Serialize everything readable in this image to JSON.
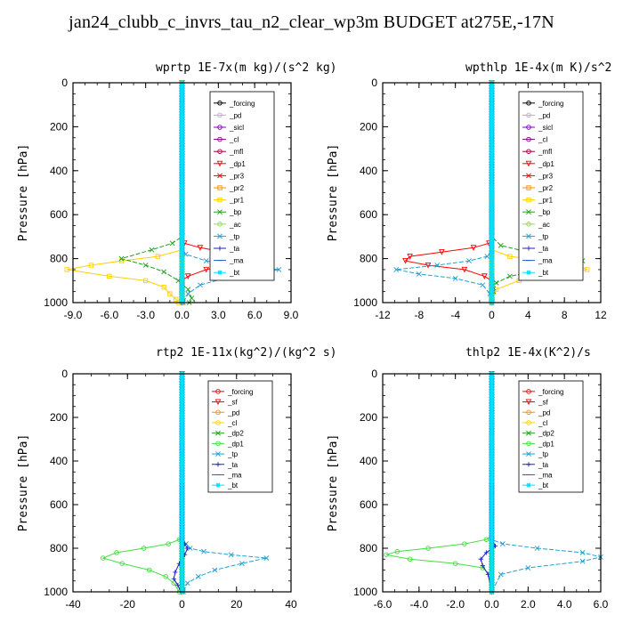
{
  "page_title": "jan24_clubb_c_invrs_tau_n2_clear_wp3m  BUDGET at275E,-17N",
  "chart_data": [
    {
      "type": "line",
      "title": "wprtp  1E-7x(m kg)/(s^2 kg)",
      "ylabel": "Pressure [hPa]",
      "xlim": [
        -9,
        9
      ],
      "ylim": [
        1000,
        0
      ],
      "xticks": [
        -9.0,
        -6.0,
        -3.0,
        0.0,
        3.0,
        6.0,
        9.0
      ],
      "xtick_labels": [
        "-9.0",
        "-6.0",
        "-3.0",
        "0.0",
        "3.0",
        "6.0",
        "9.0"
      ],
      "yticks": [
        0,
        200,
        400,
        600,
        800,
        1000
      ],
      "legend_position": "top-right",
      "series": [
        {
          "name": "_forcing",
          "color": "#000000",
          "marker": "o",
          "x": [
            0,
            0,
            0,
            0,
            0,
            0
          ],
          "y": [
            0,
            200,
            400,
            600,
            800,
            1000
          ]
        },
        {
          "name": "_pd",
          "color": "#c8a0e0",
          "marker": "o",
          "x": [
            0,
            0,
            0
          ],
          "y": [
            0,
            500,
            1000
          ]
        },
        {
          "name": "_sicl",
          "color": "#8000c0",
          "marker": "o",
          "x": [
            0,
            0,
            0
          ],
          "y": [
            0,
            500,
            1000
          ]
        },
        {
          "name": "_cl",
          "color": "#800080",
          "marker": "o",
          "x": [
            0,
            0,
            0
          ],
          "y": [
            0,
            500,
            1000
          ]
        },
        {
          "name": "_mfl",
          "color": "#a00040",
          "marker": "o",
          "x": [
            0,
            0,
            0
          ],
          "y": [
            0,
            500,
            1000
          ]
        },
        {
          "name": "_dp1",
          "color": "#ff0000",
          "marker": "v",
          "x": [
            0,
            0,
            0.2,
            1.5,
            3.5,
            5.0,
            5.2,
            4.0,
            2.0,
            0.5,
            0,
            0
          ],
          "y": [
            0,
            700,
            730,
            750,
            770,
            790,
            810,
            830,
            850,
            880,
            900,
            1000
          ]
        },
        {
          "name": "_pr3",
          "color": "#ff0000",
          "marker": "x",
          "x": [
            0,
            0,
            0
          ],
          "y": [
            0,
            500,
            1000
          ]
        },
        {
          "name": "_pr2",
          "color": "#ff9000",
          "marker": "s",
          "x": [
            0,
            0,
            0
          ],
          "y": [
            0,
            500,
            1000
          ]
        },
        {
          "name": "_pr1",
          "color": "#ffd000",
          "marker": "s",
          "x": [
            0,
            0,
            0,
            -2.0,
            -5.0,
            -7.5,
            -9.5,
            -6.0,
            -3.0,
            -1.5,
            -1.0,
            -0.5,
            -0.3
          ],
          "y": [
            0,
            700,
            760,
            790,
            810,
            830,
            850,
            880,
            900,
            930,
            960,
            985,
            1000
          ]
        },
        {
          "name": "_bp",
          "color": "#20a020",
          "marker": "x",
          "x": [
            0,
            0,
            -0.8,
            -2.5,
            -5.0,
            -3.0,
            -1.5,
            -0.3,
            0.5,
            0.8,
            0.6
          ],
          "y": [
            0,
            700,
            730,
            760,
            800,
            830,
            860,
            900,
            940,
            980,
            1000
          ]
        },
        {
          "name": "_ac",
          "color": "#90e040",
          "marker": "o",
          "x": [
            0,
            0,
            0
          ],
          "y": [
            0,
            500,
            1000
          ]
        },
        {
          "name": "_tp",
          "color": "#20a0d0",
          "marker": "x",
          "x": [
            0,
            0,
            0.3,
            2.0,
            5.5,
            8.0,
            6.0,
            3.5,
            1.5,
            0.5,
            0.1
          ],
          "y": [
            0,
            750,
            780,
            810,
            830,
            850,
            870,
            890,
            920,
            960,
            1000
          ]
        },
        {
          "name": "_ta",
          "color": "#2020c0",
          "marker": "+",
          "x": [
            0,
            0,
            0
          ],
          "y": [
            0,
            500,
            1000
          ]
        },
        {
          "name": "_ma",
          "color": "#2060c0",
          "marker": "-",
          "x": [
            0,
            0,
            0
          ],
          "y": [
            0,
            500,
            1000
          ]
        },
        {
          "name": "_bt",
          "color": "#00e0ff",
          "marker": "*",
          "x": [
            0,
            0,
            0
          ],
          "y": [
            0,
            500,
            1000
          ]
        }
      ]
    },
    {
      "type": "line",
      "title": "wpthlp  1E-4x(m K)/s^2",
      "ylabel": "Pressure [hPa]",
      "xlim": [
        -12,
        12
      ],
      "ylim": [
        1000,
        0
      ],
      "xticks": [
        -12,
        -8,
        -4,
        0,
        4,
        8,
        12
      ],
      "xtick_labels": [
        "-12",
        "-8",
        "-4",
        "0",
        "4",
        "8",
        "12"
      ],
      "yticks": [
        0,
        200,
        400,
        600,
        800,
        1000
      ],
      "legend_position": "top-right",
      "series": [
        {
          "name": "_forcing",
          "color": "#000000",
          "marker": "o",
          "x": [
            0,
            0,
            0
          ],
          "y": [
            0,
            500,
            1000
          ]
        },
        {
          "name": "_pd",
          "color": "#c8a0e0",
          "marker": "o",
          "x": [
            0,
            0,
            0
          ],
          "y": [
            0,
            500,
            1000
          ]
        },
        {
          "name": "_sicl",
          "color": "#8000c0",
          "marker": "o",
          "x": [
            0,
            0,
            0
          ],
          "y": [
            0,
            500,
            1000
          ]
        },
        {
          "name": "_cl",
          "color": "#800080",
          "marker": "o",
          "x": [
            0,
            0,
            0
          ],
          "y": [
            0,
            500,
            1000
          ]
        },
        {
          "name": "_mfl",
          "color": "#a00040",
          "marker": "o",
          "x": [
            0,
            0,
            0
          ],
          "y": [
            0,
            500,
            1000
          ]
        },
        {
          "name": "_dp1",
          "color": "#ff0000",
          "marker": "v",
          "x": [
            0,
            0,
            -0.3,
            -2.0,
            -5.5,
            -9.0,
            -9.5,
            -7.0,
            -3.0,
            -0.8,
            0,
            0
          ],
          "y": [
            0,
            700,
            730,
            750,
            770,
            790,
            810,
            830,
            850,
            880,
            900,
            1000
          ]
        },
        {
          "name": "_pr3",
          "color": "#ff0000",
          "marker": "x",
          "x": [
            0,
            0,
            0
          ],
          "y": [
            0,
            500,
            1000
          ]
        },
        {
          "name": "_pr2",
          "color": "#ff9000",
          "marker": "s",
          "x": [
            0,
            0,
            0
          ],
          "y": [
            0,
            500,
            1000
          ]
        },
        {
          "name": "_pr1",
          "color": "#ffd000",
          "marker": "s",
          "x": [
            0,
            0,
            0,
            2.0,
            6.0,
            9.5,
            10.5,
            7.0,
            3.0,
            0.5,
            0
          ],
          "y": [
            0,
            700,
            760,
            790,
            810,
            830,
            850,
            880,
            900,
            940,
            1000
          ]
        },
        {
          "name": "_bp",
          "color": "#20a020",
          "marker": "x",
          "x": [
            0,
            0,
            1.0,
            4.0,
            7.5,
            10.0,
            7.0,
            2.0,
            0.5,
            0.2,
            0
          ],
          "y": [
            0,
            700,
            740,
            770,
            790,
            810,
            840,
            880,
            910,
            950,
            1000
          ]
        },
        {
          "name": "_ac",
          "color": "#90e040",
          "marker": "o",
          "x": [
            0,
            0,
            0
          ],
          "y": [
            0,
            500,
            1000
          ]
        },
        {
          "name": "_tp",
          "color": "#20a0d0",
          "marker": "x",
          "x": [
            0,
            0,
            -0.5,
            -2.5,
            -6.0,
            -10.5,
            -8.0,
            -4.0,
            -1.0,
            -0.2,
            0
          ],
          "y": [
            0,
            760,
            790,
            810,
            830,
            850,
            870,
            890,
            920,
            960,
            1000
          ]
        },
        {
          "name": "_ta",
          "color": "#2020c0",
          "marker": "+",
          "x": [
            0,
            0,
            0
          ],
          "y": [
            0,
            500,
            1000
          ]
        },
        {
          "name": "_ma",
          "color": "#2060c0",
          "marker": "-",
          "x": [
            0,
            0,
            0
          ],
          "y": [
            0,
            500,
            1000
          ]
        },
        {
          "name": "_bt",
          "color": "#00e0ff",
          "marker": "*",
          "x": [
            0,
            0,
            0
          ],
          "y": [
            0,
            500,
            1000
          ]
        }
      ]
    },
    {
      "type": "line",
      "title": "rtp2  1E-11x(kg^2)/(kg^2 s)",
      "ylabel": "Pressure [hPa]",
      "xlim": [
        -40,
        40
      ],
      "ylim": [
        1000,
        0
      ],
      "xticks": [
        -40,
        -20,
        0,
        20,
        40
      ],
      "xtick_labels": [
        "-40",
        "-20",
        "0",
        "20",
        "40"
      ],
      "yticks": [
        0,
        200,
        400,
        600,
        800,
        1000
      ],
      "legend_position": "top-right",
      "series": [
        {
          "name": "_forcing",
          "color": "#ff0000",
          "marker": "o",
          "x": [
            0,
            0,
            0,
            0,
            0,
            0
          ],
          "y": [
            0,
            200,
            400,
            600,
            800,
            1000
          ]
        },
        {
          "name": "_sf",
          "color": "#ff0000",
          "marker": "v",
          "x": [
            0,
            0,
            0
          ],
          "y": [
            0,
            500,
            1000
          ]
        },
        {
          "name": "_pd",
          "color": "#ff9000",
          "marker": "o",
          "x": [
            0,
            0,
            0
          ],
          "y": [
            0,
            500,
            1000
          ]
        },
        {
          "name": "_cl",
          "color": "#ffd000",
          "marker": "o",
          "x": [
            0,
            0,
            0
          ],
          "y": [
            0,
            500,
            1000
          ]
        },
        {
          "name": "_dp2",
          "color": "#20a020",
          "marker": "x",
          "x": [
            0,
            0,
            0
          ],
          "y": [
            0,
            500,
            1000
          ]
        },
        {
          "name": "_dp1",
          "color": "#40e040",
          "marker": "o",
          "x": [
            0,
            0,
            -1.0,
            -5.0,
            -14.0,
            -24.0,
            -29.0,
            -22.0,
            -12.0,
            -6.0,
            -3.0,
            -1.0
          ],
          "y": [
            0,
            740,
            760,
            780,
            800,
            820,
            845,
            870,
            900,
            930,
            960,
            1000
          ]
        },
        {
          "name": "_tp",
          "color": "#20a0d0",
          "marker": "x",
          "x": [
            0,
            0,
            1.5,
            3.0,
            8.0,
            18.0,
            31.0,
            22.0,
            12.0,
            6.0,
            2.0,
            0.5
          ],
          "y": [
            0,
            760,
            780,
            800,
            815,
            830,
            845,
            870,
            900,
            930,
            960,
            1000
          ]
        },
        {
          "name": "_ta",
          "color": "#2020c0",
          "marker": "+",
          "x": [
            0,
            0,
            1.0,
            2.0,
            1.0,
            -1.0,
            -2.5,
            -3.0,
            -1.5,
            -0.5
          ],
          "y": [
            0,
            760,
            780,
            800,
            830,
            870,
            910,
            940,
            970,
            1000
          ]
        },
        {
          "name": "_ma",
          "color": "#2060c0",
          "marker": "-",
          "x": [
            0,
            0,
            0
          ],
          "y": [
            0,
            500,
            1000
          ]
        },
        {
          "name": "_bt",
          "color": "#00e0ff",
          "marker": "*",
          "x": [
            0,
            0,
            0
          ],
          "y": [
            0,
            500,
            1000
          ]
        }
      ]
    },
    {
      "type": "line",
      "title": "thlp2  1E-4x(K^2)/s",
      "ylabel": "Pressure [hPa]",
      "xlim": [
        -6,
        6
      ],
      "ylim": [
        1000,
        0
      ],
      "xticks": [
        -6,
        -4,
        -2,
        0,
        2,
        4,
        6
      ],
      "xtick_labels": [
        "-6.0",
        "-4.0",
        "-2.0",
        "0.0",
        "2.0",
        "4.0",
        "6.0"
      ],
      "yticks": [
        0,
        200,
        400,
        600,
        800,
        1000
      ],
      "legend_position": "top-right",
      "series": [
        {
          "name": "_forcing",
          "color": "#ff0000",
          "marker": "o",
          "x": [
            0,
            0,
            0,
            0,
            0,
            0
          ],
          "y": [
            0,
            200,
            400,
            600,
            800,
            1000
          ]
        },
        {
          "name": "_sf",
          "color": "#ff0000",
          "marker": "v",
          "x": [
            0,
            0,
            0
          ],
          "y": [
            0,
            500,
            1000
          ]
        },
        {
          "name": "_pd",
          "color": "#ff9000",
          "marker": "o",
          "x": [
            0,
            0,
            0
          ],
          "y": [
            0,
            500,
            1000
          ]
        },
        {
          "name": "_cl",
          "color": "#ffd000",
          "marker": "o",
          "x": [
            0,
            0,
            0
          ],
          "y": [
            0,
            500,
            1000
          ]
        },
        {
          "name": "_dp2",
          "color": "#20a020",
          "marker": "x",
          "x": [
            0,
            0,
            0
          ],
          "y": [
            0,
            500,
            1000
          ]
        },
        {
          "name": "_dp1",
          "color": "#40e040",
          "marker": "o",
          "x": [
            0,
            0,
            -0.3,
            -1.5,
            -3.5,
            -5.2,
            -5.8,
            -4.5,
            -2.0,
            -0.5,
            -0.1,
            0
          ],
          "y": [
            0,
            740,
            760,
            780,
            800,
            815,
            830,
            850,
            870,
            890,
            920,
            1000
          ]
        },
        {
          "name": "_tp",
          "color": "#20a0d0",
          "marker": "x",
          "x": [
            0,
            0,
            0.6,
            2.5,
            5.0,
            6.0,
            5.0,
            2.0,
            0.5,
            0
          ],
          "y": [
            0,
            760,
            780,
            800,
            820,
            840,
            860,
            890,
            920,
            1000
          ]
        },
        {
          "name": "_ta",
          "color": "#2020c0",
          "marker": "+",
          "x": [
            0,
            0,
            0.2,
            -0.3,
            -0.6,
            -0.5,
            -0.2,
            0
          ],
          "y": [
            0,
            760,
            790,
            820,
            850,
            880,
            920,
            1000
          ]
        },
        {
          "name": "_ma",
          "color": "#2060c0",
          "marker": "-",
          "x": [
            0,
            0,
            0
          ],
          "y": [
            0,
            500,
            1000
          ]
        },
        {
          "name": "_bt",
          "color": "#00e0ff",
          "marker": "*",
          "x": [
            0,
            0,
            0
          ],
          "y": [
            0,
            500,
            1000
          ]
        }
      ]
    }
  ]
}
